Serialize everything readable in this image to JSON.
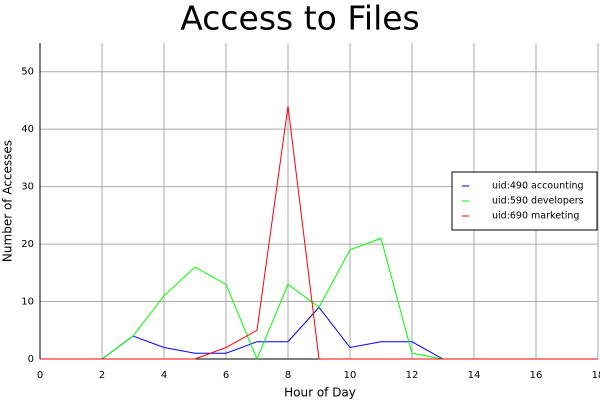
{
  "chart_data": {
    "type": "line",
    "title": "Access to Files",
    "x_label": "Hour of Day",
    "y_label": "Number of Accesses",
    "x": [
      0,
      1,
      2,
      3,
      4,
      5,
      6,
      7,
      8,
      9,
      10,
      11,
      12,
      13,
      14,
      15,
      16,
      17,
      18
    ],
    "series": [
      {
        "name": "uid:490 accounting",
        "color": "#0000ff",
        "values": [
          0,
          0,
          0,
          4,
          2,
          1,
          1,
          3,
          3,
          9,
          2,
          3,
          3,
          0,
          0,
          0,
          0,
          0,
          0
        ]
      },
      {
        "name": "uid:590 developers",
        "color": "#00ff00",
        "values": [
          0,
          0,
          0,
          4,
          11,
          16,
          13,
          0,
          13,
          9,
          19,
          21,
          1,
          0,
          0,
          0,
          0,
          0,
          0
        ]
      },
      {
        "name": "uid:690 marketing",
        "color": "#ff0000",
        "values": [
          0,
          0,
          0,
          0,
          0,
          0,
          2,
          5,
          44,
          0,
          0,
          0,
          0,
          0,
          0,
          0,
          0,
          0,
          0
        ]
      }
    ],
    "xlim": [
      0,
      18
    ],
    "ylim": [
      0,
      55
    ],
    "xticks": [
      0,
      2,
      4,
      6,
      8,
      10,
      12,
      14,
      16,
      18
    ],
    "yticks": [
      0,
      10,
      20,
      30,
      40,
      50
    ],
    "grid": true,
    "legend": "right"
  }
}
